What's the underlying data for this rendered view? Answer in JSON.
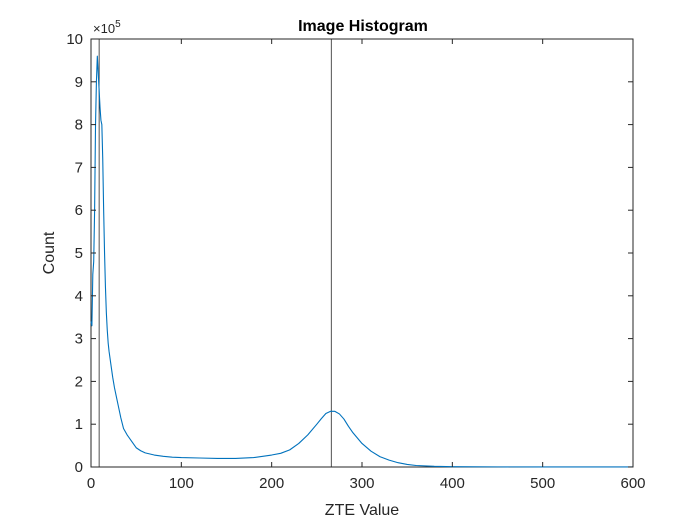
{
  "chart_data": {
    "type": "line",
    "title": "Image Histogram",
    "xlabel": "ZTE Value",
    "ylabel": "Count",
    "xlim": [
      0,
      600
    ],
    "ylim": [
      0,
      1000000
    ],
    "xticks": [
      0,
      100,
      200,
      300,
      400,
      500,
      600
    ],
    "yticks": [
      0,
      1,
      2,
      3,
      4,
      5,
      6,
      7,
      8,
      9,
      10
    ],
    "y_exponent": {
      "base": "×10",
      "power": "5"
    },
    "grid": false,
    "series_color": "#0072bd",
    "series": [
      {
        "x": [
          0,
          1,
          2,
          3,
          4,
          5,
          6,
          7,
          8,
          9,
          10,
          11,
          12,
          13,
          14,
          15,
          16,
          17,
          18,
          19,
          20,
          22,
          24,
          26,
          28,
          30,
          33,
          36,
          40,
          45,
          50,
          55,
          60,
          70,
          80,
          90,
          100,
          120,
          140,
          160,
          180,
          200,
          210,
          220,
          230,
          240,
          250,
          255,
          260,
          265,
          270,
          275,
          280,
          285,
          290,
          300,
          310,
          320,
          330,
          340,
          350,
          360,
          380,
          400,
          450,
          500,
          550,
          600
        ],
        "y": [
          340000,
          330000,
          450000,
          480000,
          600000,
          800000,
          900000,
          960000,
          920000,
          880000,
          840000,
          810000,
          800000,
          720000,
          600000,
          500000,
          420000,
          360000,
          320000,
          290000,
          270000,
          240000,
          210000,
          185000,
          165000,
          145000,
          115000,
          90000,
          75000,
          60000,
          45000,
          38000,
          33000,
          28000,
          25000,
          23000,
          22000,
          21000,
          20000,
          20000,
          22000,
          28000,
          32000,
          40000,
          55000,
          75000,
          100000,
          113000,
          125000,
          130000,
          130000,
          124000,
          112000,
          95000,
          80000,
          55000,
          37000,
          24000,
          16000,
          10000,
          6000,
          3500,
          1500,
          700,
          300,
          150,
          80,
          50
        ]
      }
    ],
    "reference_lines_x": [
      9,
      266
    ],
    "reference_line_color": "#262626"
  }
}
